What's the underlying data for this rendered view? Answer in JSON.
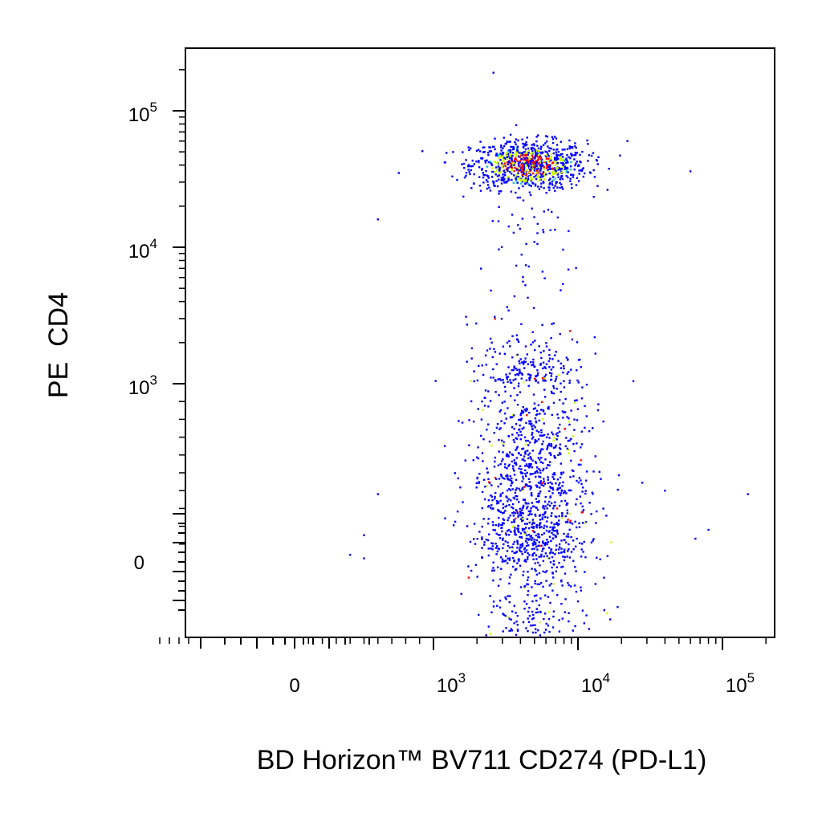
{
  "chart_data": {
    "type": "scatter",
    "style": "flow cytometry pseudocolor dot plot (biexponential axes)",
    "xlabel": "BD Horizon™ BV711 CD274 (PD-L1)",
    "ylabel": "PE  CD4",
    "x_scale": "biexponential",
    "y_scale": "biexponential",
    "xlim": [
      -1000,
      200000
    ],
    "ylim": [
      -120,
      200000
    ],
    "x_ticks": [
      {
        "value": 0,
        "label": "0"
      },
      {
        "value": 1000,
        "base": "10",
        "exp": "3"
      },
      {
        "value": 10000,
        "base": "10",
        "exp": "4"
      },
      {
        "value": 100000,
        "base": "10",
        "exp": "5"
      }
    ],
    "y_ticks": [
      {
        "value": 0,
        "label": "0"
      },
      {
        "value": 1000,
        "base": "10",
        "exp": "3"
      },
      {
        "value": 10000,
        "base": "10",
        "exp": "4"
      },
      {
        "value": 100000,
        "base": "10",
        "exp": "5"
      }
    ],
    "grid": false,
    "legend": "none",
    "density_colors": [
      "#0000ff",
      "#00c8c8",
      "#c8ff00",
      "#ff0000"
    ],
    "populations": [
      {
        "name": "",
        "events": 900,
        "x_log_center": 3.66,
        "x_log_sd": 0.2,
        "y_log_center": 4.6,
        "y_log_sd": 0.09,
        "description": "CD4+ cluster"
      },
      {
        "name": "",
        "events": 1900,
        "x_log_center": 3.68,
        "x_log_sd": 0.2,
        "y_center_value": 250,
        "y_spread_value": 1200,
        "description": "CD4- cluster"
      }
    ]
  }
}
